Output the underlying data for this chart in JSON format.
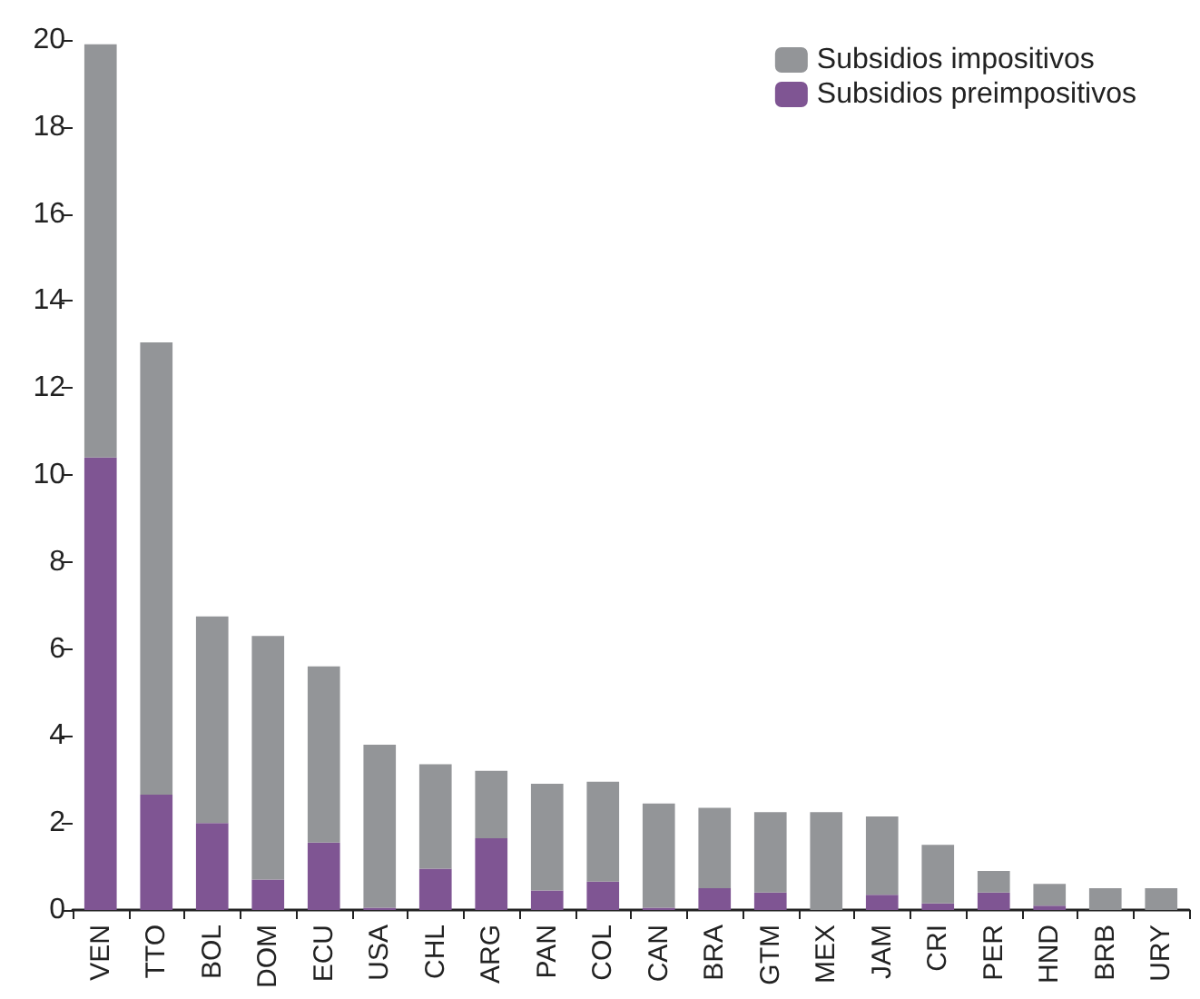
{
  "chart_data": {
    "type": "bar",
    "stacked": true,
    "categories": [
      "VEN",
      "TTO",
      "BOL",
      "DOM",
      "ECU",
      "USA",
      "CHL",
      "ARG",
      "PAN",
      "COL",
      "CAN",
      "BRA",
      "GTM",
      "MEX",
      "JAM",
      "CRI",
      "PER",
      "HND",
      "BRB",
      "URY"
    ],
    "series": [
      {
        "name": "Subsidios preimpositivos",
        "color": "#7f5593",
        "values": [
          10.4,
          2.65,
          2.0,
          0.7,
          1.55,
          0.05,
          0.95,
          1.65,
          0.45,
          0.65,
          0.05,
          0.5,
          0.4,
          0,
          0.35,
          0.15,
          0.4,
          0.1,
          0,
          0
        ]
      },
      {
        "name": "Subsidios impositivos",
        "color": "#939598",
        "values": [
          9.5,
          10.4,
          4.75,
          5.6,
          4.05,
          3.75,
          2.4,
          1.55,
          2.45,
          2.3,
          2.4,
          1.85,
          1.85,
          2.25,
          1.8,
          1.35,
          0.5,
          0.5,
          0.5,
          0.5
        ]
      }
    ],
    "ylim": [
      0,
      20
    ],
    "yticks": [
      0,
      2,
      4,
      6,
      8,
      10,
      12,
      14,
      16,
      18,
      20
    ],
    "grid": false,
    "legend": "top right"
  }
}
